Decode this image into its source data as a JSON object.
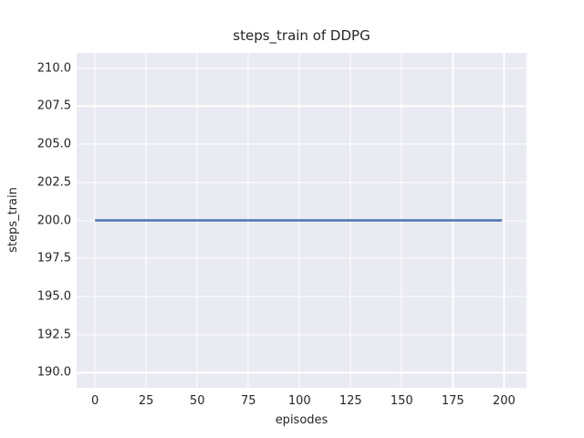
{
  "figure": {
    "background": "#ffffff"
  },
  "chart_data": {
    "type": "line",
    "title": "steps_train of DDPG",
    "xlabel": "episodes",
    "ylabel": "steps_train",
    "xlim": [
      -9,
      211
    ],
    "ylim": [
      189,
      211
    ],
    "grid": true,
    "legend": "none",
    "x_ticks": [
      {
        "value": 0,
        "label": "0"
      },
      {
        "value": 25,
        "label": "25"
      },
      {
        "value": 50,
        "label": "50"
      },
      {
        "value": 75,
        "label": "75"
      },
      {
        "value": 100,
        "label": "100"
      },
      {
        "value": 125,
        "label": "125"
      },
      {
        "value": 150,
        "label": "150"
      },
      {
        "value": 175,
        "label": "175"
      },
      {
        "value": 200,
        "label": "200"
      }
    ],
    "y_ticks": [
      {
        "value": 210.0,
        "label": "210.0"
      },
      {
        "value": 207.5,
        "label": "207.5"
      },
      {
        "value": 205.0,
        "label": "205.0"
      },
      {
        "value": 202.5,
        "label": "202.5"
      },
      {
        "value": 200.0,
        "label": "200.0"
      },
      {
        "value": 197.5,
        "label": "197.5"
      },
      {
        "value": 195.0,
        "label": "195.0"
      },
      {
        "value": 192.5,
        "label": "192.5"
      },
      {
        "value": 190.0,
        "label": "190.0"
      }
    ],
    "series": [
      {
        "name": "steps_train",
        "x": [
          0,
          199
        ],
        "y": [
          200,
          200
        ]
      }
    ],
    "style": {
      "plot_bg": "#eaeaf2",
      "grid_color": "#ffffff",
      "text_color": "#262626",
      "line_color": "#4c72b0",
      "line_width": 2.4
    }
  }
}
